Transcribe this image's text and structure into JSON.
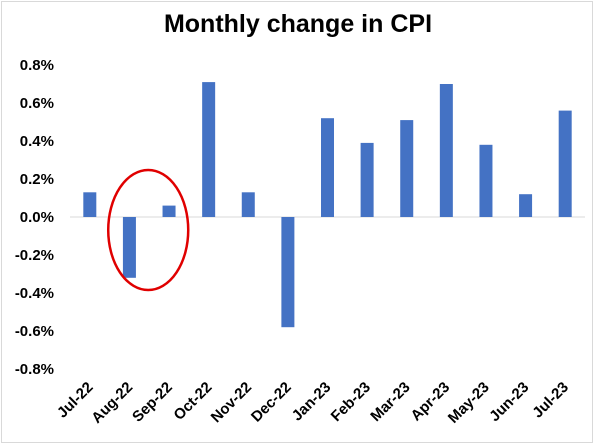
{
  "chart_data": {
    "type": "bar",
    "title": "Monthly change in CPI",
    "xlabel": "",
    "ylabel": "",
    "categories": [
      "Jul-22",
      "Aug-22",
      "Sep-22",
      "Oct-22",
      "Nov-22",
      "Dec-22",
      "Jan-23",
      "Feb-23",
      "Mar-23",
      "Apr-23",
      "May-23",
      "Jun-23",
      "Jul-23"
    ],
    "values": [
      0.13,
      -0.32,
      0.06,
      0.71,
      0.13,
      -0.58,
      0.52,
      0.39,
      0.51,
      0.7,
      0.38,
      0.12,
      0.56
    ],
    "ylim": [
      -0.8,
      0.8
    ],
    "yticks": [
      0.8,
      0.6,
      0.4,
      0.2,
      0.0,
      -0.2,
      -0.4,
      -0.6,
      -0.8
    ],
    "ytick_labels": [
      "0.8%",
      "0.6%",
      "0.4%",
      "0.2%",
      "0.0%",
      "-0.2%",
      "-0.4%",
      "-0.6%",
      "-0.8%"
    ],
    "grid": false,
    "bar_color": "#4472c4",
    "annotation": {
      "shape": "ellipse",
      "color": "#e00000",
      "around_categories": [
        "Aug-22",
        "Sep-22"
      ]
    }
  }
}
